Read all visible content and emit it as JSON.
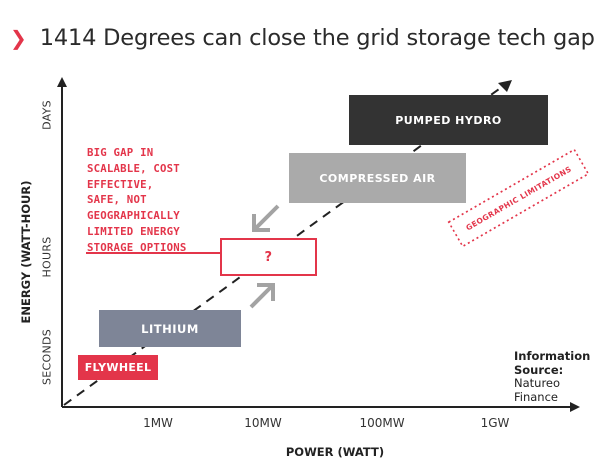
{
  "title": {
    "text": "1414 Degrees can close the grid storage tech gap"
  },
  "y_axis": {
    "label": "ENERGY (WATT-HOUR)",
    "ticks": [
      "DAYS",
      "HOURS",
      "SECONDS"
    ]
  },
  "x_axis": {
    "label": "POWER (WATT)",
    "ticks": [
      "1MW",
      "10MW",
      "100MW",
      "1GW"
    ]
  },
  "boxes": {
    "pumped_hydro": "PUMPED HYDRO",
    "compressed_air": "COMPRESSED AIR",
    "unknown": "?",
    "lithium": "LITHIUM",
    "flywheel": "FLYWHEEL"
  },
  "gap_note": {
    "lines": [
      "BIG GAP IN",
      "SCALABLE, COST",
      "EFFECTIVE,",
      "SAFE, NOT",
      "GEOGRAPHICALLY",
      "LIMITED ENERGY",
      "STORAGE OPTIONS"
    ]
  },
  "geo_label": "GEOGRAPHIC LIMITATIONS",
  "source": {
    "label_1": "Information",
    "label_2": "Source:",
    "value_1": "Natureo",
    "value_2": "Finance"
  },
  "colors": {
    "accent": "#e3354a",
    "pumped": "#333333",
    "compressed": "#aaaaaa",
    "lithium": "#7e8597",
    "text": "#2b2b2b"
  }
}
